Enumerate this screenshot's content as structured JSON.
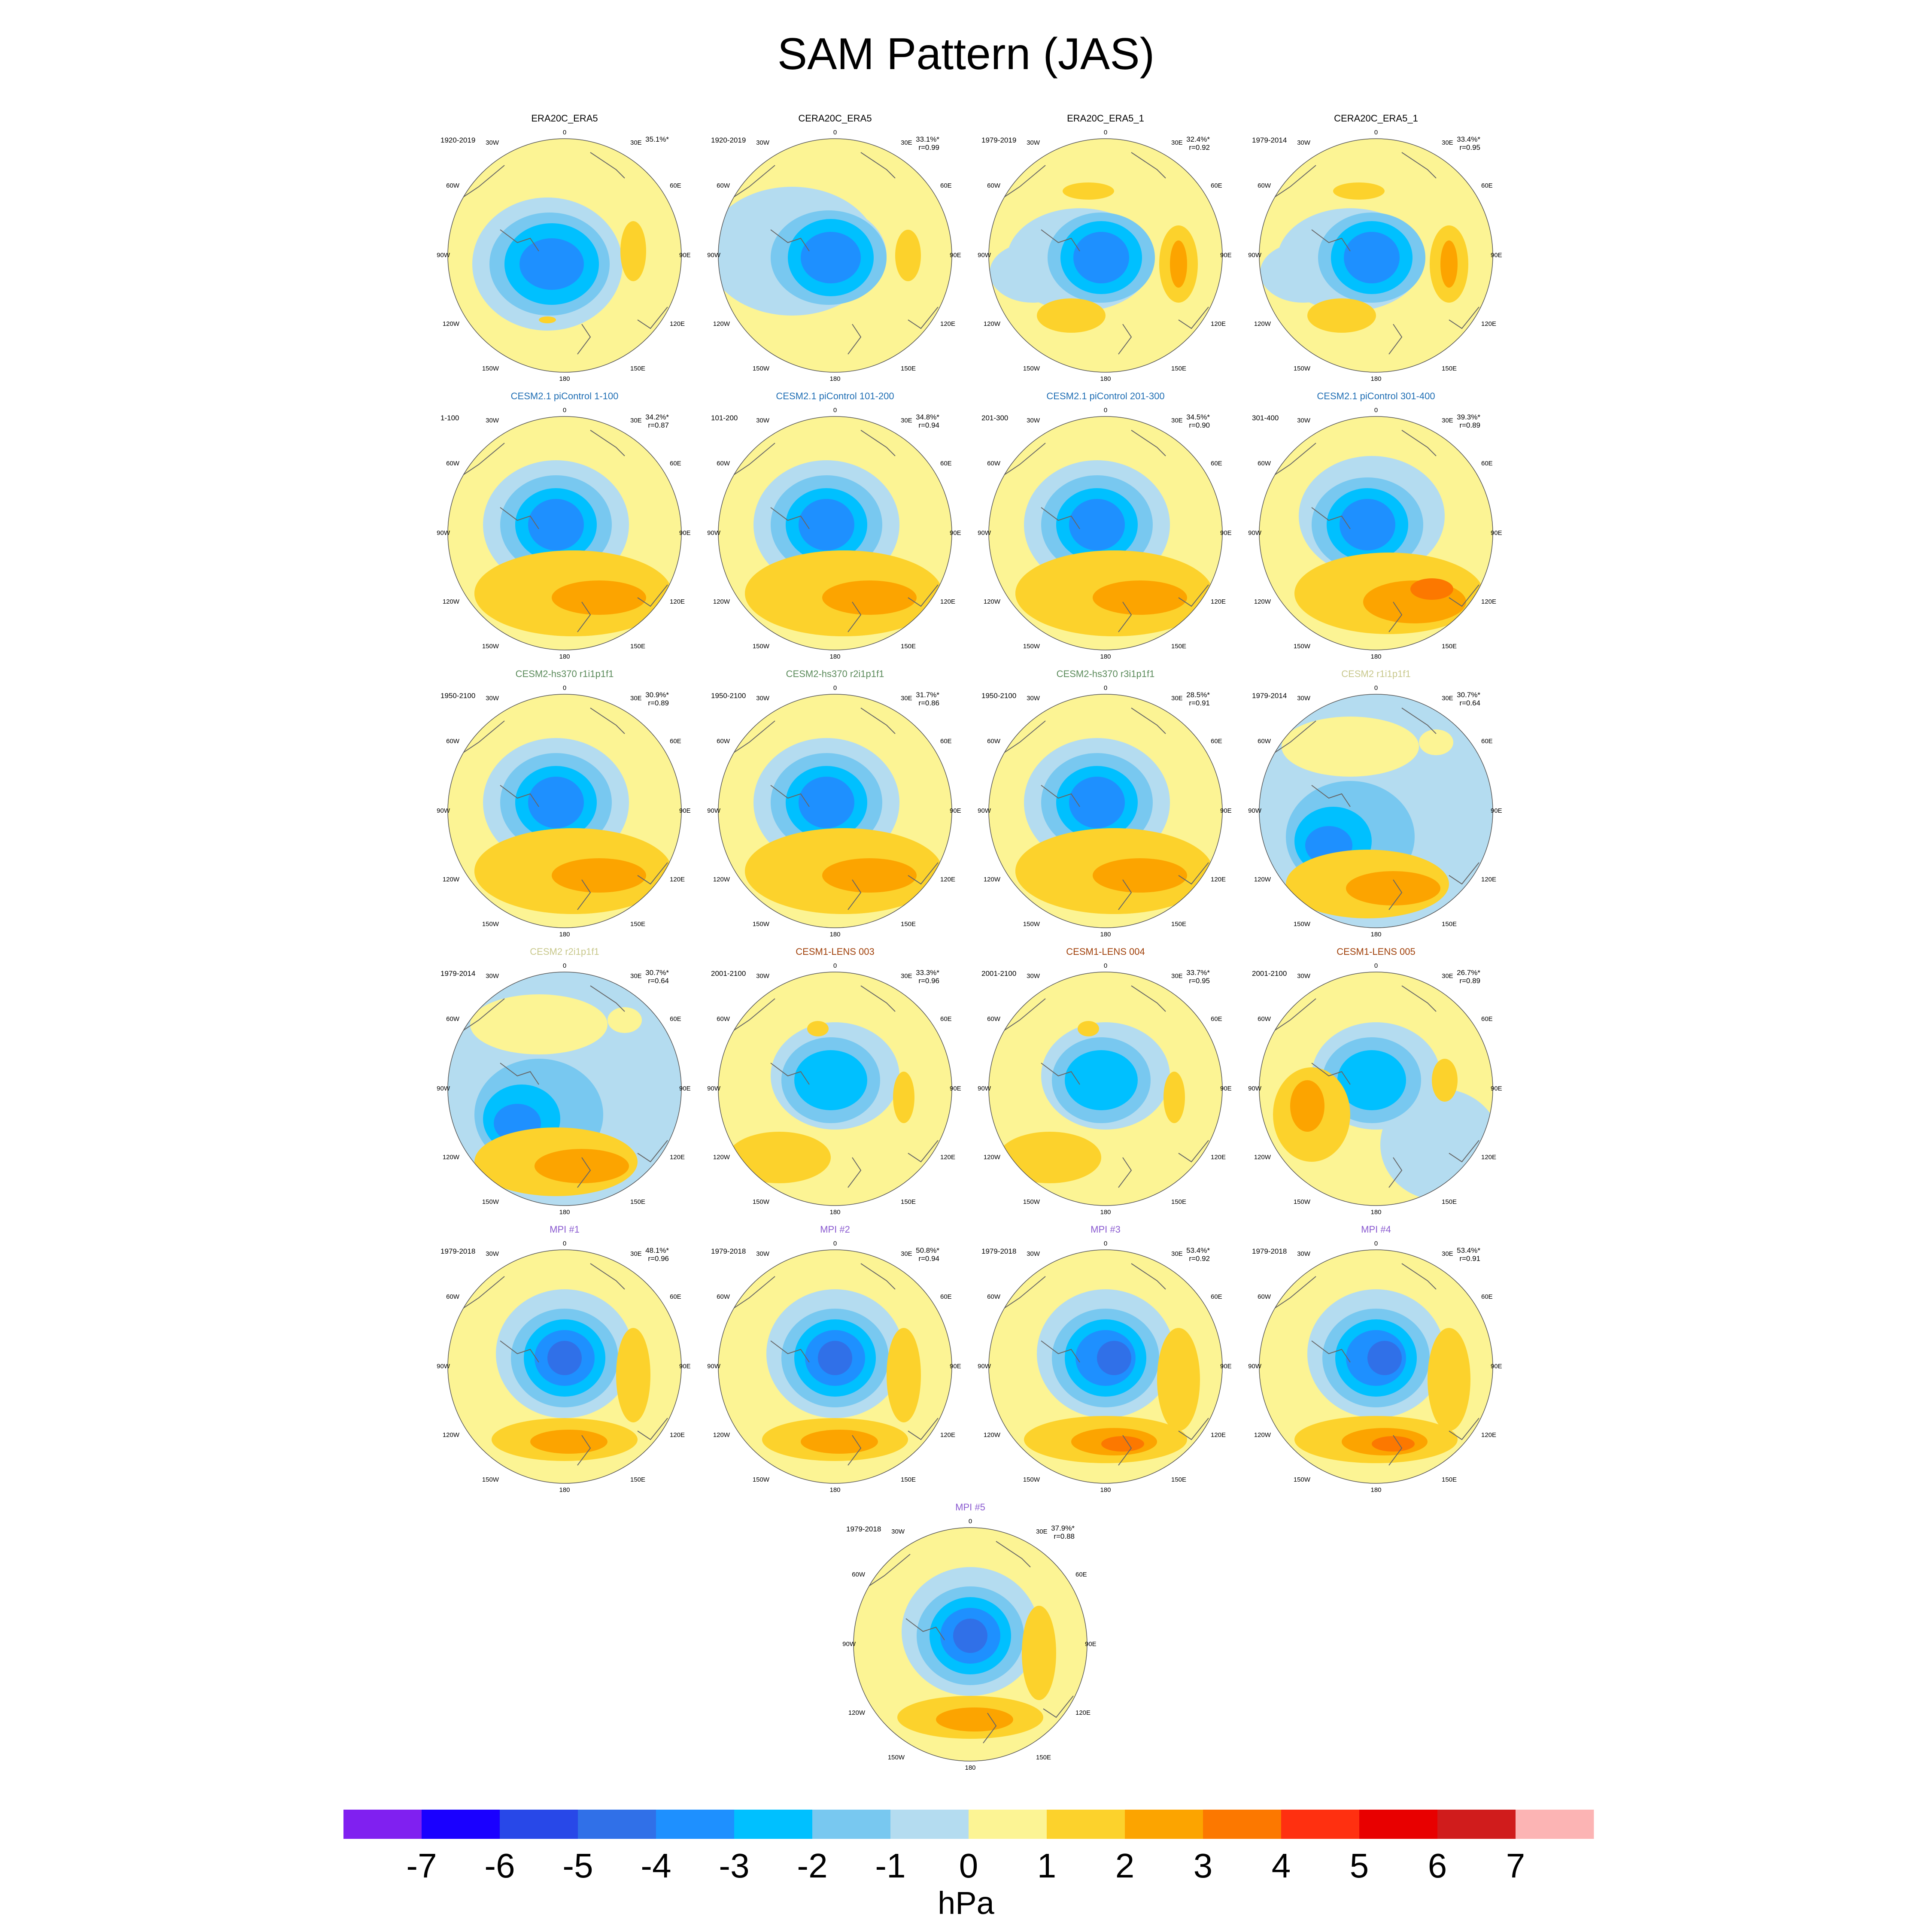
{
  "title": "SAM Pattern (JAS)",
  "colorbar": {
    "labels": [
      "-7",
      "-6",
      "-5",
      "-4",
      "-3",
      "-2",
      "-1",
      "0",
      "1",
      "2",
      "3",
      "4",
      "5",
      "6",
      "7"
    ],
    "colors": [
      "#8020f0",
      "#1a00ff",
      "#2848e8",
      "#3070e8",
      "#1e90ff",
      "#00c0ff",
      "#78c8f0",
      "#b4dcf0",
      "#fcf494",
      "#fcd22c",
      "#fca400",
      "#fc7800",
      "#ff3010",
      "#e80000",
      "#d01c1c",
      "#fcb4b4"
    ],
    "unit": "hPa"
  },
  "lon_labels": [
    "0",
    "30E",
    "60E",
    "90E",
    "120E",
    "150E",
    "180",
    "150W",
    "120W",
    "90W",
    "60W",
    "30W"
  ],
  "panels": [
    {
      "title": "ERA20C_ERA5",
      "period": "1920-2019",
      "pct": "35.1%*",
      "r": "",
      "title_color": "#000000",
      "pattern": "A"
    },
    {
      "title": "CERA20C_ERA5",
      "period": "1920-2019",
      "pct": "33.1%*",
      "r": "r=0.99",
      "title_color": "#000000",
      "pattern": "B"
    },
    {
      "title": "ERA20C_ERA5_1",
      "period": "1979-2019",
      "pct": "32.4%*",
      "r": "r=0.92",
      "title_color": "#000000",
      "pattern": "C"
    },
    {
      "title": "CERA20C_ERA5_1",
      "period": "1979-2014",
      "pct": "33.4%*",
      "r": "r=0.95",
      "title_color": "#000000",
      "pattern": "C"
    },
    {
      "title": "CESM2.1 piControl 1-100",
      "period": "1-100",
      "pct": "34.2%*",
      "r": "r=0.87",
      "title_color": "#1f6eb4",
      "pattern": "D"
    },
    {
      "title": "CESM2.1 piControl 101-200",
      "period": "101-200",
      "pct": "34.8%*",
      "r": "r=0.94",
      "title_color": "#1f6eb4",
      "pattern": "D"
    },
    {
      "title": "CESM2.1 piControl 201-300",
      "period": "201-300",
      "pct": "34.5%*",
      "r": "r=0.90",
      "title_color": "#1f6eb4",
      "pattern": "D"
    },
    {
      "title": "CESM2.1 piControl 301-400",
      "period": "301-400",
      "pct": "39.3%*",
      "r": "r=0.89",
      "title_color": "#1f6eb4",
      "pattern": "E"
    },
    {
      "title": "CESM2-hs370 r1i1p1f1",
      "period": "1950-2100",
      "pct": "30.9%*",
      "r": "r=0.89",
      "title_color": "#5a8a5a",
      "pattern": "D"
    },
    {
      "title": "CESM2-hs370 r2i1p1f1",
      "period": "1950-2100",
      "pct": "31.7%*",
      "r": "r=0.86",
      "title_color": "#5a8a5a",
      "pattern": "D"
    },
    {
      "title": "CESM2-hs370 r3i1p1f1",
      "period": "1950-2100",
      "pct": "28.5%*",
      "r": "r=0.91",
      "title_color": "#5a8a5a",
      "pattern": "D"
    },
    {
      "title": "CESM2 r1i1p1f1",
      "period": "1979-2014",
      "pct": "30.7%*",
      "r": "r=0.64",
      "title_color": "#c8c88c",
      "pattern": "F"
    },
    {
      "title": "CESM2 r2i1p1f1",
      "period": "1979-2014",
      "pct": "30.7%*",
      "r": "r=0.64",
      "title_color": "#c8c88c",
      "pattern": "F"
    },
    {
      "title": "CESM1-LENS 003",
      "period": "2001-2100",
      "pct": "33.3%*",
      "r": "r=0.96",
      "title_color": "#a0400a",
      "pattern": "G"
    },
    {
      "title": "CESM1-LENS 004",
      "period": "2001-2100",
      "pct": "33.7%*",
      "r": "r=0.95",
      "title_color": "#a0400a",
      "pattern": "G"
    },
    {
      "title": "CESM1-LENS 005",
      "period": "2001-2100",
      "pct": "26.7%*",
      "r": "r=0.89",
      "title_color": "#a0400a",
      "pattern": "H"
    },
    {
      "title": "MPI #1",
      "period": "1979-2018",
      "pct": "48.1%*",
      "r": "r=0.96",
      "title_color": "#8a5ad0",
      "pattern": "I"
    },
    {
      "title": "MPI #2",
      "period": "1979-2018",
      "pct": "50.8%*",
      "r": "r=0.94",
      "title_color": "#8a5ad0",
      "pattern": "I"
    },
    {
      "title": "MPI #3",
      "period": "1979-2018",
      "pct": "53.4%*",
      "r": "r=0.92",
      "title_color": "#8a5ad0",
      "pattern": "J"
    },
    {
      "title": "MPI #4",
      "period": "1979-2018",
      "pct": "53.4%*",
      "r": "r=0.91",
      "title_color": "#8a5ad0",
      "pattern": "J"
    },
    {
      "title": "MPI #5",
      "period": "1979-2018",
      "pct": "37.9%*",
      "r": "r=0.88",
      "title_color": "#8a5ad0",
      "pattern": "I"
    }
  ]
}
